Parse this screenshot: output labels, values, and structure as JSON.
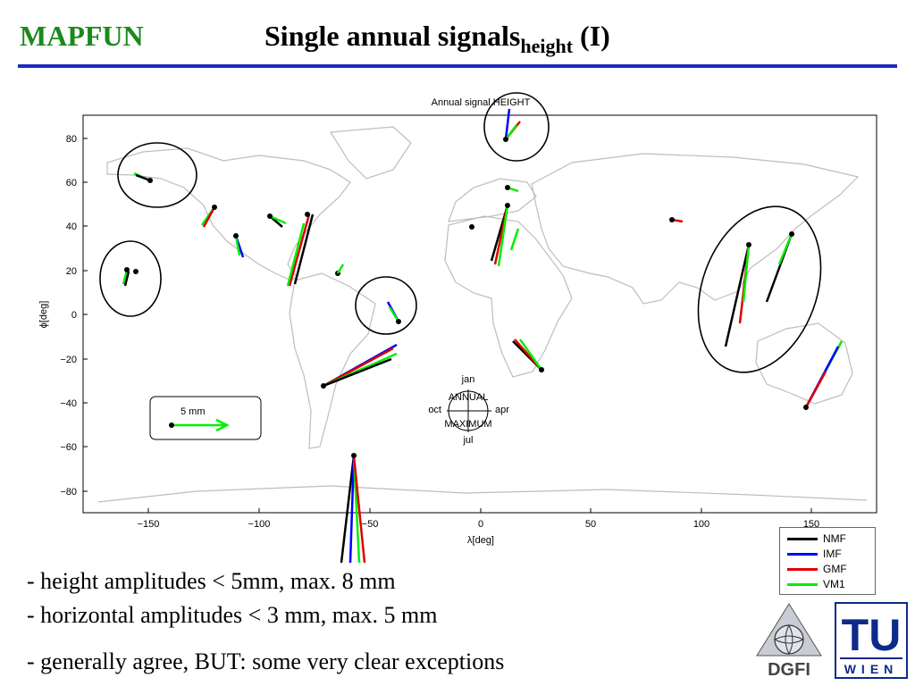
{
  "header": {
    "brand": "MAPFUN",
    "title_main": "Single annual signals",
    "title_sub": "height",
    "title_suffix": " (I)"
  },
  "figure": {
    "title": "Annual signal HEIGHT",
    "xlabel": "λ[deg]",
    "ylabel": "ϕ[deg]",
    "xticks": [
      "−150",
      "−100",
      "−50",
      "0",
      "50",
      "100",
      "150"
    ],
    "yticks": [
      "80",
      "60",
      "40",
      "20",
      "0",
      "−20",
      "−40",
      "−60",
      "−80"
    ],
    "scale_label": "5 mm",
    "phase_labels": {
      "top": "jan",
      "left": "oct",
      "right": "apr",
      "bottom": "jul",
      "line1": "ANNUAL",
      "line2": "MAXIMUM"
    }
  },
  "legend": [
    {
      "label": "NMF",
      "color": "#000000"
    },
    {
      "label": "IMF",
      "color": "#0000ff"
    },
    {
      "label": "GMF",
      "color": "#dd0000"
    },
    {
      "label": "VM1",
      "color": "#00ee00"
    }
  ],
  "bullets": [
    "- height amplitudes < 5mm, max. 8 mm",
    "- horizontal amplitudes < 3 mm, max. 5 mm",
    "- generally agree, BUT: some very clear exceptions"
  ],
  "logos": {
    "dgfi": "DGFI",
    "tu_top": "TU",
    "tu_bottom": "WIEN"
  }
}
